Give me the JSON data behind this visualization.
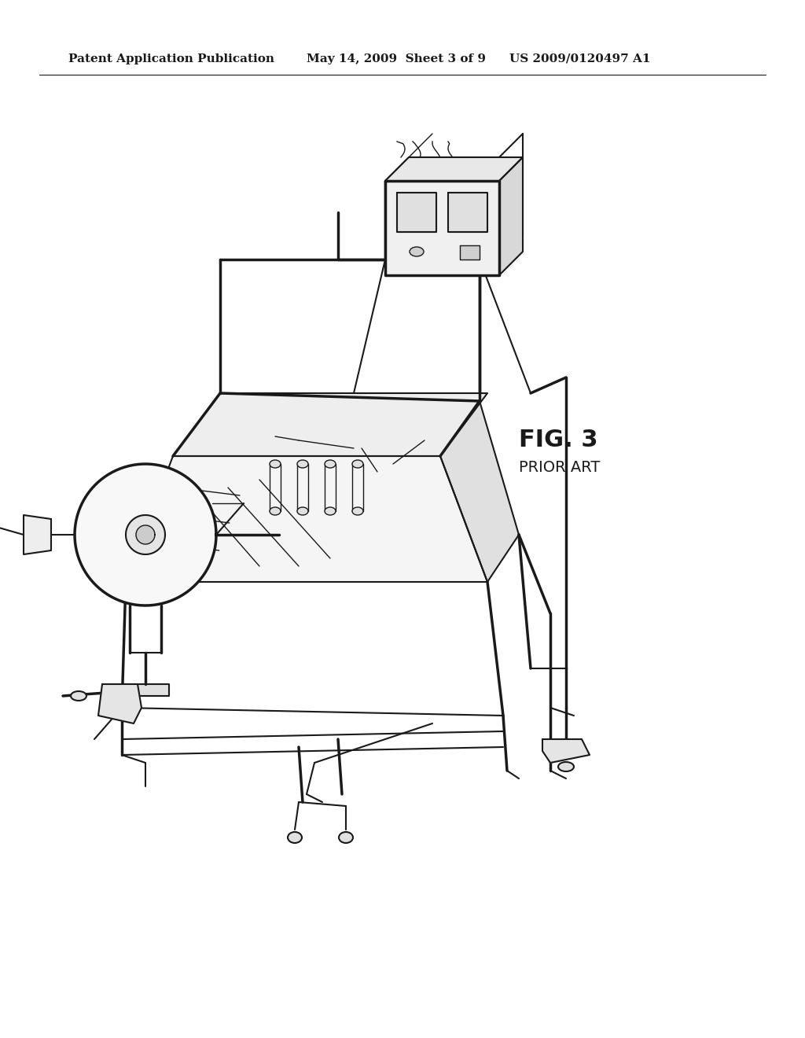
{
  "title_left": "Patent Application Publication",
  "title_mid": "May 14, 2009  Sheet 3 of 9",
  "title_right": "US 2009/0120497 A1",
  "fig_label": "FIG. 3",
  "fig_sublabel": "PRIOR ART",
  "background_color": "#ffffff",
  "line_color": "#1a1a1a",
  "header_fontsize": 11,
  "label_fontsize": 16
}
